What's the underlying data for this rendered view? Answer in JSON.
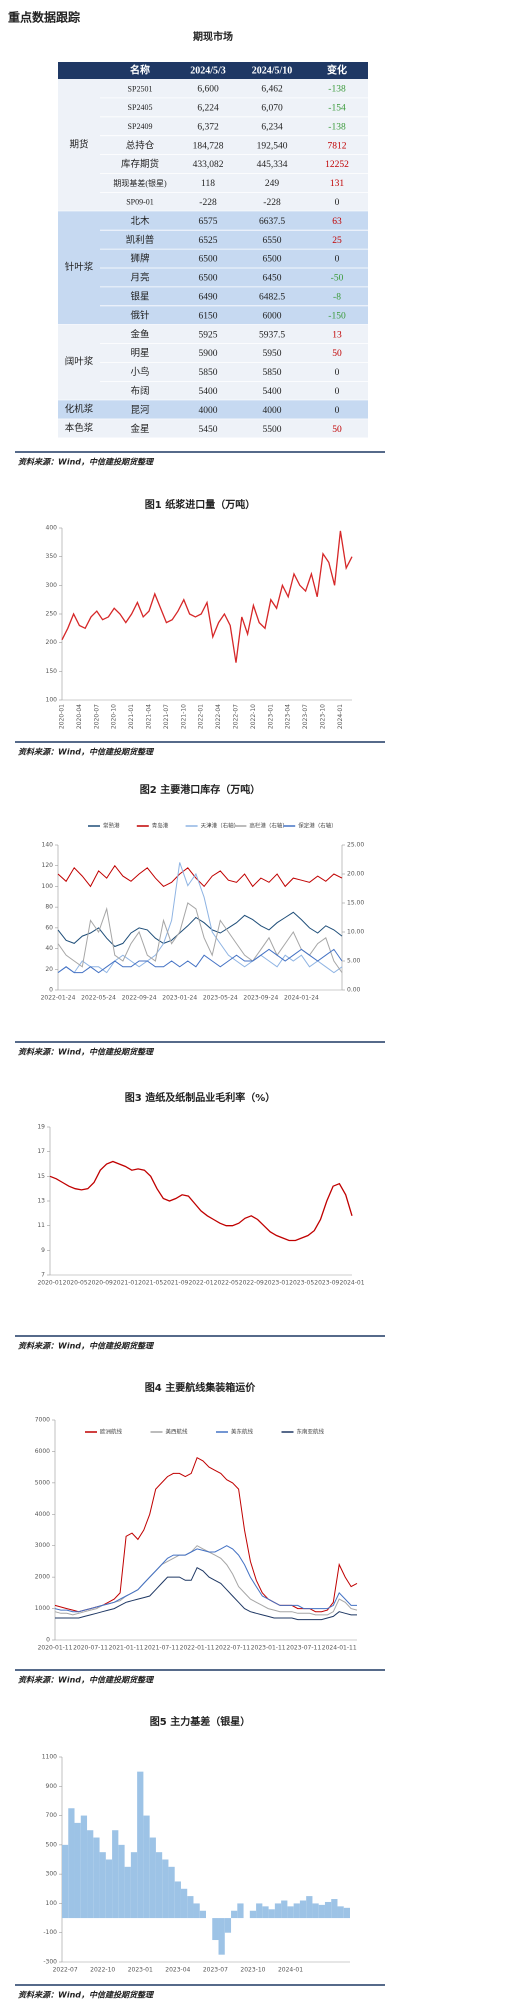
{
  "header": {
    "title": "重点数据跟踪",
    "section": "期现市场"
  },
  "table": {
    "header": [
      "名称",
      "2024/5/3",
      "2024/5/10",
      "变化"
    ],
    "groups": [
      {
        "name": "期货",
        "rows": [
          [
            "SP2501",
            "6,600",
            "6,462",
            "-138"
          ],
          [
            "SP2405",
            "6,224",
            "6,070",
            "-154"
          ],
          [
            "SP2409",
            "6,372",
            "6,234",
            "-138"
          ],
          [
            "总持仓",
            "184,728",
            "192,540",
            "7812"
          ],
          [
            "库存期货",
            "433,082",
            "445,334",
            "12252"
          ],
          [
            "期现基差(银星)",
            "118",
            "249",
            "131"
          ],
          [
            "SP09-01",
            "-228",
            "-228",
            "0"
          ]
        ]
      },
      {
        "name": "针叶浆",
        "rows": [
          [
            "北木",
            "6575",
            "6637.5",
            "63"
          ],
          [
            "凯利普",
            "6525",
            "6550",
            "25"
          ],
          [
            "狮牌",
            "6500",
            "6500",
            "0"
          ],
          [
            "月亮",
            "6500",
            "6450",
            "-50"
          ],
          [
            "银星",
            "6490",
            "6482.5",
            "-8"
          ],
          [
            "俄针",
            "6150",
            "6000",
            "-150"
          ]
        ]
      },
      {
        "name": "阔叶浆",
        "rows": [
          [
            "金鱼",
            "5925",
            "5937.5",
            "13"
          ],
          [
            "明星",
            "5900",
            "5950",
            "50"
          ],
          [
            "小鸟",
            "5850",
            "5850",
            "0"
          ],
          [
            "布阔",
            "5400",
            "5400",
            "0"
          ]
        ]
      },
      {
        "name": "化机浆",
        "rows": [
          [
            "昆河",
            "4000",
            "4000",
            "0"
          ]
        ]
      },
      {
        "name": "本色浆",
        "rows": [
          [
            "金星",
            "5450",
            "5500",
            "50"
          ]
        ]
      }
    ]
  },
  "sources": [
    "资料来源：Wind，中信建投期货整理",
    "资料来源：Wind，中信建投期货整理",
    "资料来源：Wind，中信建投期货整理",
    "资料来源：Wind，中信建投期货整理",
    "资料来源：Wind，中信建投期货整理",
    "资料来源：Wind，中信建投期货整理"
  ],
  "chart_data": [
    {
      "type": "line",
      "title": "图1 纸浆进口量（万吨）",
      "color": "#d62728",
      "categories": [
        "2020-01",
        null,
        null,
        "2020-04",
        null,
        null,
        "2020-07",
        null,
        null,
        "2020-10",
        null,
        null,
        "2021-01",
        null,
        null,
        "2021-04",
        null,
        null,
        "2021-07",
        null,
        null,
        "2021-10",
        null,
        null,
        "2022-01",
        null,
        null,
        "2022-04",
        null,
        null,
        "2022-07",
        null,
        null,
        "2022-10",
        null,
        null,
        "2023-01",
        null,
        null,
        "2023-04",
        null,
        null,
        "2023-07",
        null,
        null,
        "2023-10",
        null,
        null,
        "2024-01",
        null,
        null
      ],
      "values": [
        205,
        225,
        250,
        230,
        225,
        245,
        255,
        240,
        245,
        260,
        250,
        235,
        250,
        270,
        245,
        255,
        285,
        260,
        235,
        240,
        255,
        275,
        250,
        245,
        250,
        270,
        210,
        235,
        250,
        230,
        165,
        245,
        215,
        265,
        235,
        225,
        275,
        260,
        300,
        280,
        320,
        300,
        290,
        320,
        280,
        355,
        340,
        300,
        395,
        330,
        350
      ],
      "ylim": [
        100,
        400
      ],
      "yticks": [
        100,
        150,
        200,
        250,
        300,
        350,
        400
      ],
      "grid": false
    },
    {
      "type": "line",
      "title": "图2 主要港口库存（万吨）",
      "legend": "top",
      "categories": [
        "2022-01-24",
        null,
        null,
        null,
        null,
        "2022-05-24",
        null,
        null,
        null,
        null,
        "2022-09-24",
        null,
        null,
        null,
        null,
        "2023-01-24",
        null,
        null,
        null,
        null,
        "2023-05-24",
        null,
        null,
        null,
        null,
        "2023-09-24",
        null,
        null,
        null,
        null,
        "2024-01-24",
        null,
        null,
        null,
        null,
        null
      ],
      "series": [
        {
          "name": "常熟港",
          "color": "#1f4e79",
          "values": [
            58,
            48,
            45,
            52,
            55,
            60,
            50,
            42,
            45,
            55,
            60,
            58,
            50,
            45,
            48,
            55,
            62,
            70,
            65,
            58,
            55,
            60,
            65,
            72,
            68,
            62,
            58,
            65,
            70,
            75,
            68,
            60,
            55,
            62,
            58,
            52
          ]
        },
        {
          "name": "青岛港",
          "color": "#c00000",
          "values": [
            112,
            105,
            118,
            110,
            100,
            115,
            108,
            120,
            110,
            105,
            112,
            118,
            108,
            100,
            104,
            112,
            118,
            108,
            100,
            110,
            115,
            106,
            104,
            112,
            100,
            108,
            104,
            112,
            100,
            108,
            106,
            104,
            110,
            105,
            112,
            108
          ]
        },
        {
          "name": "天津港（右轴）",
          "color": "#8fb4e3",
          "axis": "y2",
          "values": [
            3,
            4,
            3,
            5,
            4,
            4,
            3,
            5,
            6,
            5,
            4,
            5,
            6,
            8,
            12,
            22,
            18,
            20,
            16,
            10,
            8,
            6,
            5,
            4,
            5,
            6,
            5,
            4,
            6,
            5,
            6,
            4,
            5,
            4,
            3,
            4
          ]
        },
        {
          "name": "高栏港（右轴）",
          "color": "#a6a6a6",
          "axis": "y2",
          "values": [
            8,
            6,
            5,
            4,
            12,
            10,
            14,
            6,
            5,
            8,
            10,
            6,
            5,
            12,
            8,
            10,
            15,
            14,
            9,
            6,
            12,
            10,
            8,
            6,
            5,
            7,
            9,
            6,
            8,
            10,
            7,
            6,
            8,
            9,
            5,
            3
          ]
        },
        {
          "name": "保定港（右轴）",
          "color": "#4472c4",
          "axis": "y2",
          "values": [
            3,
            4,
            3,
            3,
            4,
            3,
            4,
            5,
            4,
            4,
            5,
            5,
            4,
            4,
            5,
            4,
            5,
            4,
            6,
            5,
            4,
            5,
            6,
            5,
            5,
            6,
            7,
            6,
            5,
            6,
            7,
            6,
            5,
            6,
            7,
            5
          ]
        }
      ],
      "ylim": [
        0,
        140
      ],
      "yticks": [
        0,
        20,
        40,
        60,
        80,
        100,
        120,
        140
      ],
      "y2lim": [
        0,
        25
      ],
      "y2ticks": [
        {
          "value": 0,
          "label": "0.00"
        },
        {
          "value": 5,
          "label": "5.00"
        },
        {
          "value": 10,
          "label": "10.00"
        },
        {
          "value": 15,
          "label": "15.00"
        },
        {
          "value": 20,
          "label": "20.00"
        },
        {
          "value": 25,
          "label": "25.00"
        }
      ],
      "grid": false
    },
    {
      "type": "line",
      "title": "图3 造纸及纸制品业毛利率（%）",
      "color": "#c00000",
      "categories": [
        "2020-01",
        null,
        null,
        null,
        "2020-05",
        null,
        null,
        null,
        "2020-09",
        null,
        null,
        null,
        "2021-01",
        null,
        null,
        null,
        "2021-05",
        null,
        null,
        null,
        "2021-09",
        null,
        null,
        null,
        "2022-01",
        null,
        null,
        null,
        "2022-05",
        null,
        null,
        null,
        "2022-09",
        null,
        null,
        null,
        "2023-01",
        null,
        null,
        null,
        "2023-05",
        null,
        null,
        null,
        "2023-09",
        null,
        null,
        null,
        "2024-01"
      ],
      "values": [
        15.0,
        14.8,
        14.5,
        14.2,
        14.0,
        13.9,
        14.0,
        14.5,
        15.5,
        16.0,
        16.2,
        16.0,
        15.8,
        15.5,
        15.6,
        15.5,
        15.0,
        14.0,
        13.2,
        13.0,
        13.2,
        13.5,
        13.4,
        12.8,
        12.2,
        11.8,
        11.5,
        11.2,
        11.0,
        11.0,
        11.2,
        11.6,
        11.8,
        11.5,
        11.0,
        10.5,
        10.2,
        10.0,
        9.8,
        9.8,
        10.0,
        10.2,
        10.6,
        11.5,
        13.0,
        14.2,
        14.4,
        13.5,
        11.8
      ],
      "ylim": [
        7,
        19
      ],
      "yticks": [
        7,
        9,
        11,
        13,
        15,
        17,
        19
      ],
      "grid": false
    },
    {
      "type": "line",
      "title": "图4 主要航线集装箱运价",
      "legend": "top",
      "categories": [
        "2020-01-11",
        null,
        null,
        null,
        null,
        null,
        "2020-07-11",
        null,
        null,
        null,
        null,
        null,
        "2021-01-11",
        null,
        null,
        null,
        null,
        null,
        "2021-07-11",
        null,
        null,
        null,
        null,
        null,
        "2022-01-11",
        null,
        null,
        null,
        null,
        null,
        "2022-07-11",
        null,
        null,
        null,
        null,
        null,
        "2023-01-11",
        null,
        null,
        null,
        null,
        null,
        "2023-07-11",
        null,
        null,
        null,
        null,
        null,
        "2024-01-11",
        null,
        null,
        null
      ],
      "series": [
        {
          "name": "欧洲航线",
          "color": "#c00000",
          "values": [
            1100,
            1050,
            1000,
            950,
            900,
            950,
            1000,
            1050,
            1100,
            1200,
            1300,
            1500,
            3300,
            3400,
            3200,
            3500,
            4000,
            4800,
            5000,
            5200,
            5300,
            5300,
            5200,
            5300,
            5800,
            5700,
            5500,
            5400,
            5300,
            5100,
            5000,
            4800,
            3500,
            2500,
            1900,
            1500,
            1300,
            1200,
            1100,
            1100,
            1100,
            1000,
            1000,
            1000,
            900,
            900,
            950,
            1200,
            2400,
            2000,
            1700,
            1800
          ]
        },
        {
          "name": "美西航线",
          "color": "#a6a6a6",
          "values": [
            900,
            850,
            850,
            800,
            850,
            900,
            950,
            1000,
            1100,
            1150,
            1200,
            1250,
            1400,
            1500,
            1600,
            1800,
            2000,
            2200,
            2400,
            2500,
            2600,
            2700,
            2700,
            2800,
            3000,
            2900,
            2800,
            2700,
            2600,
            2400,
            2100,
            1700,
            1500,
            1300,
            1200,
            1100,
            1000,
            950,
            900,
            900,
            900,
            850,
            850,
            850,
            800,
            800,
            800,
            900,
            1300,
            1200,
            1000,
            950
          ]
        },
        {
          "name": "美东航线",
          "color": "#4472c4",
          "values": [
            1000,
            950,
            950,
            900,
            900,
            950,
            1000,
            1050,
            1100,
            1150,
            1200,
            1300,
            1400,
            1500,
            1600,
            1800,
            2000,
            2200,
            2400,
            2600,
            2700,
            2700,
            2700,
            2800,
            2900,
            2850,
            2800,
            2800,
            2900,
            3000,
            2900,
            2700,
            2400,
            2000,
            1700,
            1400,
            1300,
            1200,
            1100,
            1100,
            1100,
            1100,
            1000,
            1000,
            1000,
            1000,
            1000,
            1100,
            1500,
            1300,
            1100,
            1100
          ]
        },
        {
          "name": "东南亚航线",
          "color": "#1f3864",
          "values": [
            700,
            700,
            700,
            700,
            700,
            750,
            800,
            850,
            900,
            950,
            1000,
            1100,
            1200,
            1250,
            1300,
            1350,
            1400,
            1600,
            1800,
            2000,
            2000,
            2000,
            1900,
            1900,
            2300,
            2200,
            2000,
            1900,
            1800,
            1600,
            1400,
            1200,
            1000,
            900,
            850,
            800,
            750,
            700,
            700,
            700,
            700,
            650,
            650,
            650,
            650,
            650,
            700,
            750,
            900,
            850,
            800,
            800
          ]
        }
      ],
      "ylim": [
        0,
        7000
      ],
      "yticks": [
        0,
        1000,
        2000,
        3000,
        4000,
        5000,
        6000,
        7000
      ],
      "grid": false
    },
    {
      "type": "bar",
      "title": "图5 主力基差（银星）",
      "color": "#9dc3e6",
      "categories": [
        "2022-07",
        null,
        null,
        null,
        null,
        null,
        "2022-10",
        null,
        null,
        null,
        null,
        null,
        "2023-01",
        null,
        null,
        null,
        null,
        null,
        "2023-04",
        null,
        null,
        null,
        null,
        null,
        "2023-07",
        null,
        null,
        null,
        null,
        null,
        "2023-10",
        null,
        null,
        null,
        null,
        null,
        "2024-01",
        null,
        null,
        null,
        null,
        null,
        null,
        null,
        null,
        null
      ],
      "values": [
        500,
        750,
        650,
        700,
        600,
        550,
        450,
        400,
        600,
        500,
        350,
        450,
        1000,
        700,
        550,
        450,
        400,
        350,
        250,
        200,
        150,
        100,
        50,
        0,
        -150,
        -250,
        -100,
        50,
        100,
        0,
        50,
        100,
        80,
        60,
        100,
        120,
        80,
        100,
        120,
        150,
        100,
        90,
        110,
        130,
        80,
        70
      ],
      "ylim": [
        -300,
        1100
      ],
      "yticks": [
        -300,
        -100,
        100,
        300,
        500,
        700,
        900,
        1100
      ],
      "grid": false
    }
  ]
}
